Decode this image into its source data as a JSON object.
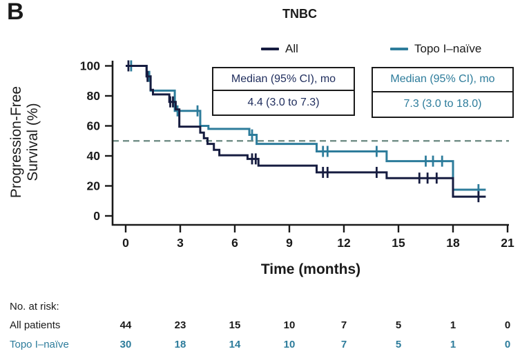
{
  "panel_label": "B",
  "title": "TNBC",
  "colors": {
    "all": "#161c40",
    "topo": "#2d7c9b",
    "reference_dash": "#75918a",
    "axis": "#1a1a1a"
  },
  "legend": {
    "items": [
      {
        "label": "All",
        "color": "#161c40"
      },
      {
        "label": "Topo I–naïve",
        "color": "#2d7c9b"
      }
    ]
  },
  "median_boxes": {
    "all": {
      "header": "Median (95% CI), mo",
      "value": "4.4 (3.0 to 7.3)",
      "text_color": "#1e2c5c"
    },
    "topo": {
      "header": "Median (95% CI), mo",
      "value": "7.3 (3.0 to 18.0)",
      "text_color": "#2d7c9b"
    }
  },
  "axis": {
    "xlabel": "Time (months)",
    "ylabel_line1": "Progression-Free",
    "ylabel_line2": "Survival (%)"
  },
  "chart_data": {
    "type": "line",
    "subtype": "kaplan-meier-step",
    "title": "TNBC",
    "xlabel": "Time (months)",
    "ylabel": "Progression-Free Survival (%)",
    "xlim": [
      0,
      21
    ],
    "xticks": [
      0,
      3,
      6,
      9,
      12,
      15,
      18,
      21
    ],
    "ylim": [
      0,
      100
    ],
    "yticks": [
      0,
      20,
      40,
      60,
      80,
      100
    ],
    "grid": false,
    "reference_line_y": 50,
    "legend_position": "top",
    "series": [
      {
        "name": "Topo I–naïve",
        "color": "#2d7c9b",
        "median_months": 7.3,
        "ci_95": [
          3.0,
          18.0
        ],
        "steps": [
          [
            0,
            100
          ],
          [
            1.15,
            93
          ],
          [
            1.37,
            83.5
          ],
          [
            2.7,
            70
          ],
          [
            4.1,
            60
          ],
          [
            4.55,
            58
          ],
          [
            6.8,
            54
          ],
          [
            7.2,
            48
          ],
          [
            10.5,
            43
          ],
          [
            14.35,
            36.5
          ],
          [
            18,
            17.5
          ]
        ],
        "end_month": 19.8,
        "censors": [
          [
            0.3,
            100
          ],
          [
            1.3,
            93
          ],
          [
            2.85,
            70
          ],
          [
            3.95,
            70
          ],
          [
            6.95,
            54
          ],
          [
            10.85,
            43
          ],
          [
            11.1,
            43
          ],
          [
            13.8,
            43
          ],
          [
            16.5,
            36.5
          ],
          [
            16.9,
            36.5
          ],
          [
            17.4,
            36.5
          ],
          [
            19.4,
            17.5
          ]
        ]
      },
      {
        "name": "All",
        "color": "#161c40",
        "median_months": 4.4,
        "ci_95": [
          3.0,
          7.3
        ],
        "steps": [
          [
            0,
            100
          ],
          [
            1.15,
            93
          ],
          [
            1.37,
            84
          ],
          [
            1.5,
            81
          ],
          [
            2.4,
            76
          ],
          [
            2.75,
            71
          ],
          [
            2.95,
            59.5
          ],
          [
            4.1,
            55.5
          ],
          [
            4.3,
            51.8
          ],
          [
            4.5,
            48
          ],
          [
            4.85,
            44
          ],
          [
            5.15,
            40.4
          ],
          [
            6.7,
            38
          ],
          [
            7.3,
            33.5
          ],
          [
            10.5,
            29
          ],
          [
            14.35,
            25.2
          ],
          [
            18,
            12.8
          ]
        ],
        "end_month": 19.8,
        "censors": [
          [
            0.15,
            100
          ],
          [
            1.2,
            93
          ],
          [
            2.45,
            76
          ],
          [
            2.6,
            76
          ],
          [
            6.95,
            38
          ],
          [
            7.15,
            38
          ],
          [
            10.85,
            29
          ],
          [
            11.1,
            29
          ],
          [
            13.8,
            29
          ],
          [
            16.15,
            25.2
          ],
          [
            16.6,
            25.2
          ],
          [
            17.1,
            25.2
          ],
          [
            19.4,
            12.8
          ]
        ]
      }
    ]
  },
  "risk_table": {
    "heading": "No. at risk:",
    "months": [
      0,
      3,
      6,
      9,
      12,
      15,
      18,
      21
    ],
    "rows": [
      {
        "label": "All patients",
        "color": "#1a1a1a",
        "values": [
          "44",
          "23",
          "15",
          "10",
          "7",
          "5",
          "1",
          "0"
        ]
      },
      {
        "label": "Topo I–naïve",
        "color": "#2d7c9b",
        "values": [
          "30",
          "18",
          "14",
          "10",
          "7",
          "5",
          "1",
          "0"
        ]
      }
    ]
  }
}
